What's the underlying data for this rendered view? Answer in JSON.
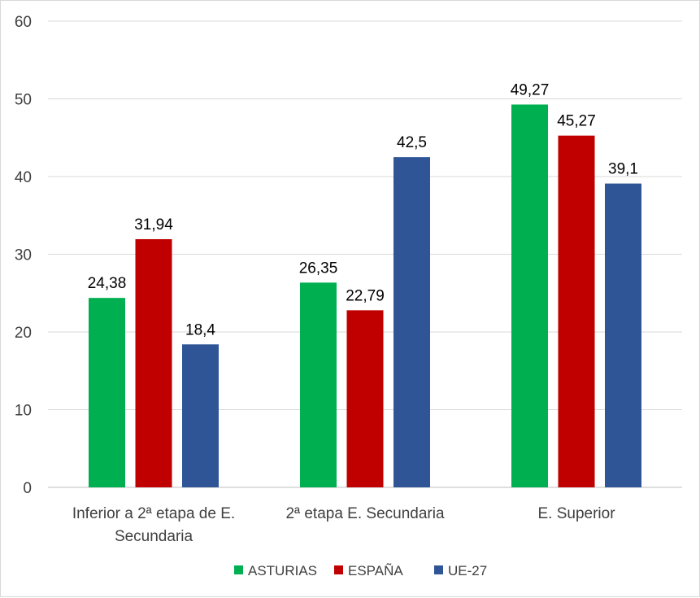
{
  "chart_data": {
    "type": "bar",
    "title": "",
    "xlabel": "",
    "ylabel": "",
    "ylim": [
      0,
      60
    ],
    "yticks": [
      0,
      10,
      20,
      30,
      40,
      50,
      60
    ],
    "grid": true,
    "legend_position": "bottom",
    "categories": [
      [
        "Inferior a 2ª etapa de E.",
        "Secundaria"
      ],
      [
        "2ª etapa E. Secundaria"
      ],
      [
        "E. Superior"
      ]
    ],
    "series": [
      {
        "name": "ASTURIAS",
        "color": "#00B050",
        "values": [
          24.38,
          26.35,
          49.27
        ],
        "labels": [
          "24,38",
          "26,35",
          "49,27"
        ]
      },
      {
        "name": "ESPAÑA",
        "color": "#C00000",
        "values": [
          31.94,
          22.79,
          45.27
        ],
        "labels": [
          "31,94",
          "22,79",
          "45,27"
        ]
      },
      {
        "name": "UE-27",
        "color": "#2F5597",
        "values": [
          18.4,
          42.5,
          39.1
        ],
        "labels": [
          "18,4",
          "42,5",
          "39,1"
        ]
      }
    ]
  }
}
